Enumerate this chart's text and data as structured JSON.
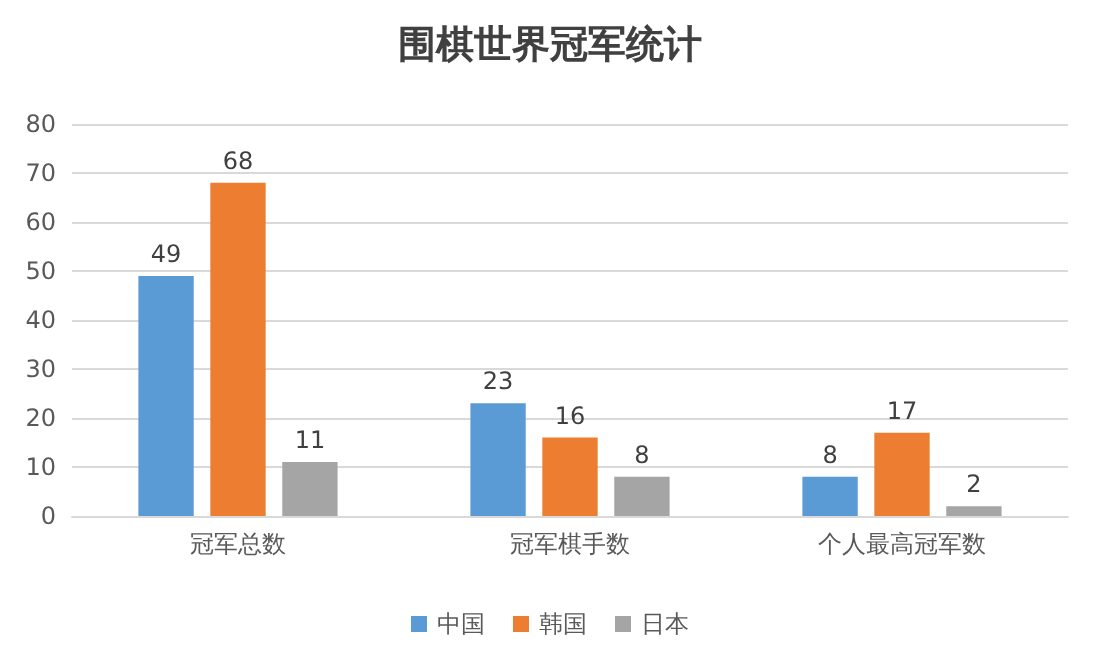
{
  "chart_data": {
    "type": "bar",
    "title": "围棋世界冠军统计",
    "categories": [
      "冠军总数",
      "冠军棋手数",
      "个人最高冠军数"
    ],
    "series": [
      {
        "name": "中国",
        "color": "#5b9bd5",
        "values": [
          49,
          23,
          8
        ]
      },
      {
        "name": "韩国",
        "color": "#ed7d31",
        "values": [
          68,
          16,
          17
        ]
      },
      {
        "name": "日本",
        "color": "#a5a5a5",
        "values": [
          11,
          8,
          2
        ]
      }
    ],
    "ylim": [
      0,
      80
    ],
    "yticks": [
      0,
      10,
      20,
      30,
      40,
      50,
      60,
      70,
      80
    ],
    "grid": "y",
    "legend": "bottom",
    "data_labels": true
  }
}
